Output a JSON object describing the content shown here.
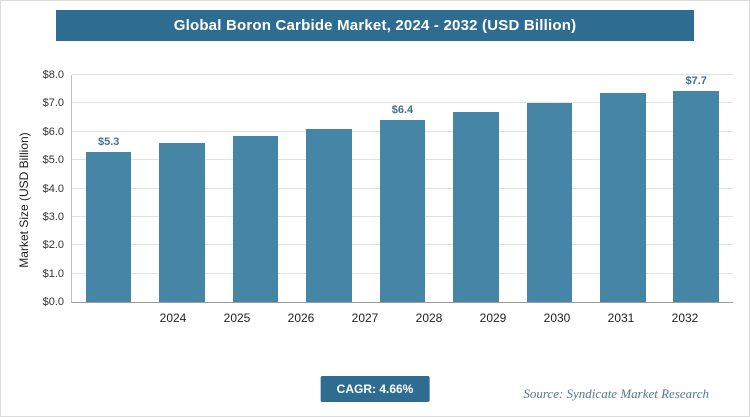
{
  "page": {
    "title": "Global Boron Carbide Market, 2024 - 2032 (USD Billion)",
    "footer": {
      "cagr_label": "CAGR: 4.66%",
      "source": "Source: Syndicate Market Research"
    }
  },
  "colors": {
    "header_bg": "#2e6d91",
    "bar": "#4586a7",
    "badge_bg": "#2e6d91",
    "value_label_text": "#44708c",
    "source_text": "#55788e",
    "gridline": "#e2e2e2"
  },
  "chart_data": {
    "type": "bar",
    "title": "Global Boron Carbide Market, 2024 - 2032 (USD Billion)",
    "categories": [
      "2024",
      "2025",
      "2026",
      "2027",
      "2028",
      "2029",
      "2030",
      "2031",
      "2032"
    ],
    "values": [
      5.3,
      5.6,
      5.85,
      6.1,
      6.4,
      6.7,
      7.0,
      7.35,
      7.7
    ],
    "value_labels": [
      "$5.3",
      null,
      null,
      null,
      "$6.4",
      null,
      null,
      null,
      "$7.7"
    ],
    "xlabel": "",
    "ylabel": "Market Size (USD Billion)",
    "ylim": [
      0,
      8
    ],
    "ytick_step": 1,
    "ytick_labels": [
      "$0.0",
      "$1.0",
      "$2.0",
      "$3.0",
      "$4.0",
      "$5.0",
      "$6.0",
      "$7.0",
      "$8.0"
    ],
    "grid": true,
    "legend": false
  }
}
